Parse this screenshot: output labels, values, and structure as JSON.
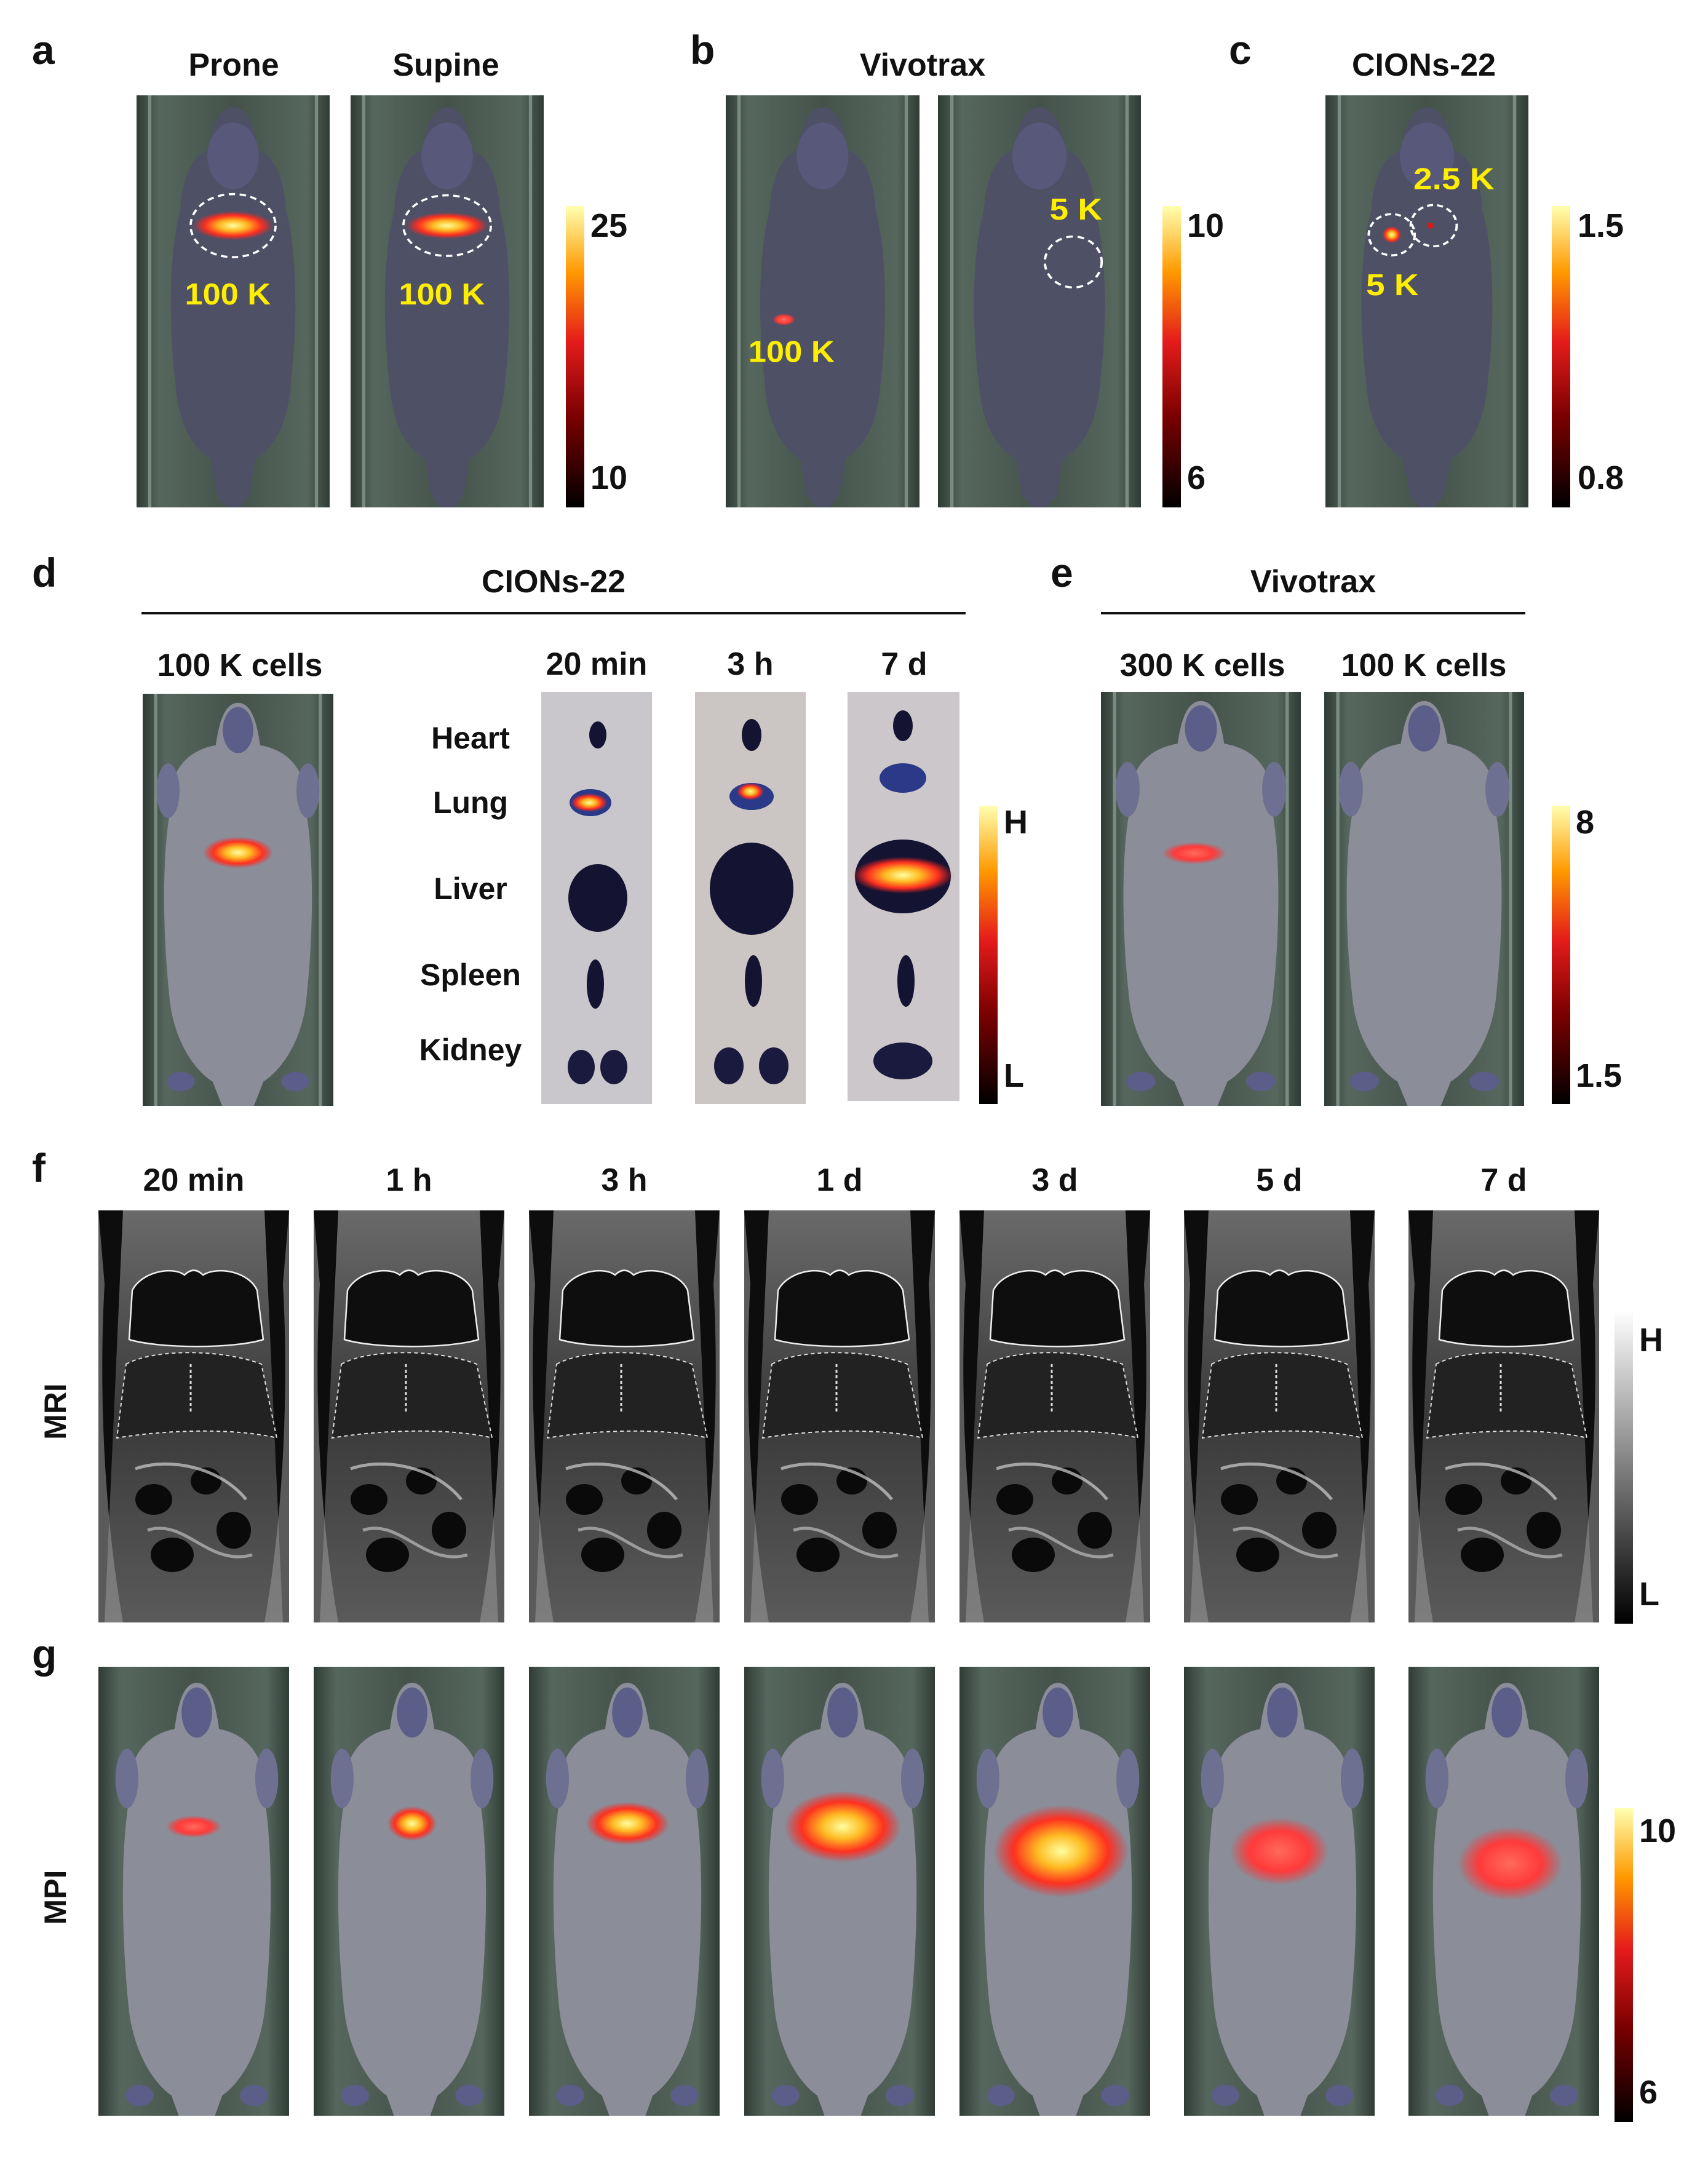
{
  "panel_letters": [
    "a",
    "b",
    "c",
    "d",
    "e",
    "f",
    "g"
  ],
  "a": {
    "titles": [
      "Prone",
      "Supine"
    ],
    "cell_labels": [
      "100 K",
      "100 K"
    ],
    "colorbar": {
      "max": "25",
      "min": "10"
    }
  },
  "b": {
    "title": "Vivotrax",
    "cell_labels": [
      "100 K",
      "5 K"
    ],
    "colorbar": {
      "max": "10",
      "min": "6"
    }
  },
  "c": {
    "title": "CIONs-22",
    "cell_labels": [
      "2.5 K",
      "5 K"
    ],
    "colorbar": {
      "max": "1.5",
      "min": "0.8"
    }
  },
  "d": {
    "group_title": "CIONs-22",
    "cells_title": "100 K cells",
    "times": [
      "20 min",
      "3 h",
      "7 d"
    ],
    "organs": [
      "Heart",
      "Lung",
      "Liver",
      "Spleen",
      "Kidney"
    ],
    "colorbar": {
      "max": "H",
      "min": "L"
    }
  },
  "e": {
    "group_title": "Vivotrax",
    "titles": [
      "300 K cells",
      "100 K cells"
    ],
    "colorbar": {
      "max": "8",
      "min": "1.5"
    }
  },
  "f": {
    "row_label": "MRI",
    "times": [
      "20 min",
      "1 h",
      "3 h",
      "1 d",
      "3 d",
      "5 d",
      "7 d"
    ],
    "colorbar": {
      "max": "H",
      "min": "L"
    }
  },
  "g": {
    "row_label": "MPI",
    "colorbar": {
      "max": "10",
      "min": "6"
    }
  },
  "colors": {
    "hot_low": "#1a0000",
    "hot_mid": "#e01b1b",
    "hot_high": "#ffff9a",
    "label_yellow": "#ffee00",
    "mouse": "#5e6179"
  }
}
